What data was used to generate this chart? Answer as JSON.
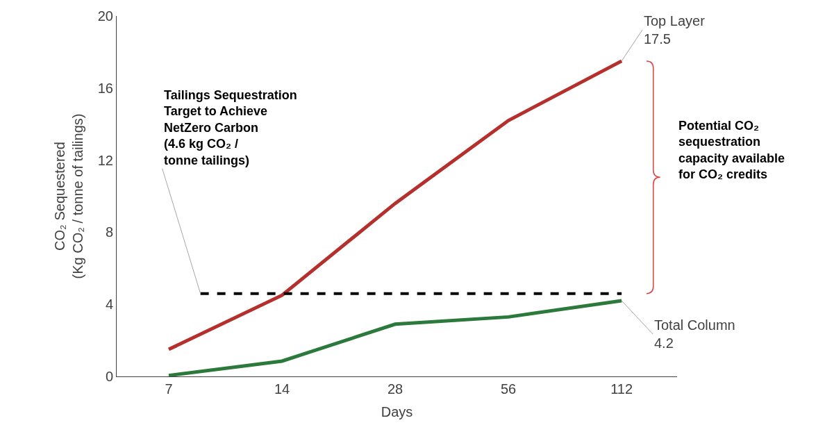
{
  "chart_data": {
    "type": "line",
    "xlabel": "Days",
    "ylabel": "CO₂ Sequestered\n(Kg CO₂ / tonne of tailings)",
    "categories": [
      "7",
      "14",
      "28",
      "56",
      "112"
    ],
    "series": [
      {
        "name": "Top Layer",
        "color": "#b5302c",
        "values": [
          1.5,
          4.5,
          9.6,
          14.2,
          17.5
        ],
        "value_labels": [
          null,
          null,
          null,
          null,
          "17.5"
        ]
      },
      {
        "name": "Total Column",
        "color": "#2b7a3b",
        "values": [
          0.05,
          0.85,
          2.9,
          3.3,
          4.2
        ],
        "value_labels": [
          null,
          null,
          null,
          null,
          "4.2"
        ]
      }
    ],
    "ylim": [
      0,
      20
    ],
    "yticks": [
      0,
      4,
      8,
      12,
      16,
      20
    ],
    "grid": false,
    "legend": false,
    "marker": "none",
    "line_style": "solid",
    "ref_lines": [
      {
        "axis": "y",
        "value": 4.6,
        "label": "Tailings Sequestration\nTarget to Achieve\nNetZero Carbon\n(4.6 kg CO₂ /\ntonne tailings)",
        "color": "#000000",
        "line_style": "dashed"
      }
    ],
    "annotations": [
      "Potential CO₂\nsequestration\ncapacity available\nfor CO₂ credits"
    ]
  }
}
